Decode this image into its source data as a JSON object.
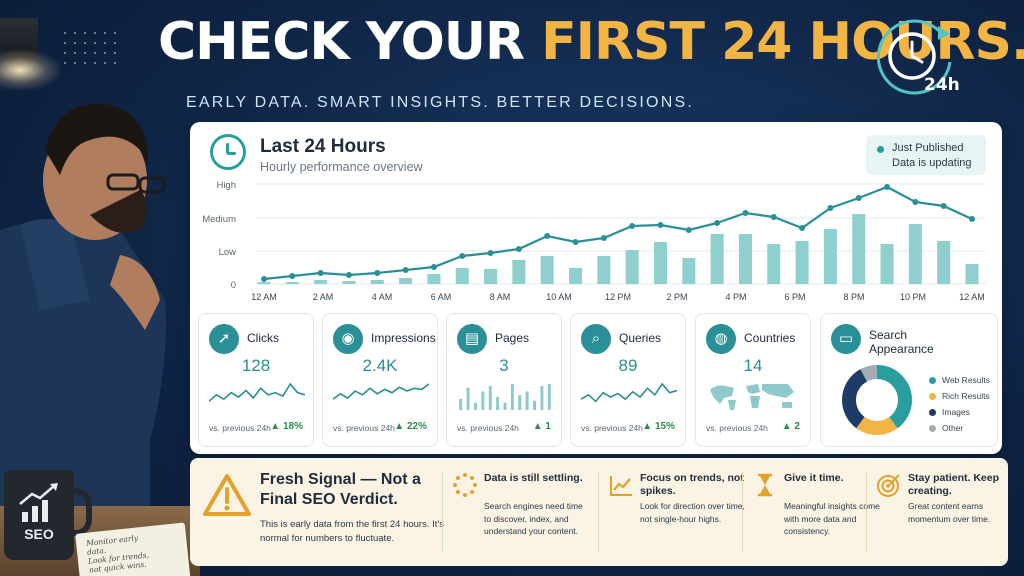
{
  "header": {
    "title_white": "CHECK YOUR ",
    "title_yellow": "FIRST 24 HOURS.",
    "subtitle": "EARLY DATA. SMART INSIGHTS. BETTER DECISIONS.",
    "badge": "24h",
    "badge_icon": "clock-icon"
  },
  "main_card": {
    "title": "Last 24 Hours",
    "subtitle": "Hourly performance overview",
    "status_title": "Just Published",
    "status_text": "Data is updating"
  },
  "chart_data": {
    "type": "bar",
    "y_tick_labels": [
      "High",
      "Medium",
      "Low",
      "0"
    ],
    "x_tick_labels": [
      "12 AM",
      "2 AM",
      "4 AM",
      "6 AM",
      "8 AM",
      "10 AM",
      "12 PM",
      "2 PM",
      "4 PM",
      "6 PM",
      "8 PM",
      "10 PM",
      "12 AM"
    ],
    "ylim": [
      0,
      100
    ],
    "grid": true,
    "series": [
      {
        "type": "bar",
        "color": "#8fd0cf",
        "values": [
          2,
          2,
          4,
          3,
          4,
          6,
          10,
          16,
          15,
          24,
          28,
          16,
          28,
          34,
          42,
          26,
          50,
          50,
          40,
          43,
          55,
          70,
          40,
          60,
          43,
          20
        ]
      },
      {
        "type": "line",
        "color": "#2a8f96",
        "values": [
          5,
          8,
          11,
          9,
          11,
          14,
          17,
          28,
          31,
          35,
          48,
          42,
          46,
          58,
          59,
          54,
          61,
          71,
          67,
          56,
          76,
          86,
          97,
          82,
          78,
          65
        ]
      }
    ]
  },
  "metrics": [
    {
      "label": "Clicks",
      "value": "128",
      "foot": "vs. previous 24h",
      "delta": "▲ 18%",
      "icon": "cursor-icon",
      "spark": "line",
      "spark_values": [
        40,
        55,
        45,
        60,
        50,
        65,
        48,
        70,
        55,
        60,
        52,
        80,
        60,
        55
      ]
    },
    {
      "label": "Impressions",
      "value": "2.4K",
      "foot": "vs. previous 24h",
      "delta": "▲ 22%",
      "icon": "eye-icon",
      "spark": "line",
      "spark_values": [
        40,
        50,
        42,
        55,
        48,
        60,
        50,
        58,
        52,
        62,
        55,
        60,
        58,
        68
      ]
    },
    {
      "label": "Pages",
      "value": "3",
      "foot": "vs. previous 24h",
      "delta": "▲ 1",
      "icon": "document-icon",
      "spark": "bar",
      "spark_values": [
        40,
        70,
        30,
        60,
        75,
        45,
        30,
        80,
        50,
        60,
        35,
        75,
        80
      ]
    },
    {
      "label": "Queries",
      "value": "89",
      "foot": "vs. previous 24h",
      "delta": "▲ 15%",
      "icon": "search-icon",
      "spark": "line",
      "spark_values": [
        45,
        55,
        40,
        60,
        50,
        58,
        45,
        62,
        50,
        70,
        55,
        80,
        60,
        65
      ]
    },
    {
      "label": "Countries",
      "value": "14",
      "foot": "vs. previous 24h",
      "delta": "▲ 2",
      "icon": "globe-icon",
      "spark": "map",
      "spark_values": []
    }
  ],
  "search_appearance": {
    "label": "Search Appearance",
    "icon": "browser-icon",
    "segments": [
      {
        "name": "Web Results",
        "value": 40,
        "color": "#2a9d9f"
      },
      {
        "name": "Rich Results",
        "value": 20,
        "color": "#f2b544"
      },
      {
        "name": "Images",
        "value": 32,
        "color": "#1e3a66"
      },
      {
        "name": "Other",
        "value": 8,
        "color": "#a3adb6"
      }
    ]
  },
  "advice": {
    "title": "Fresh Signal — Not a Final SEO Verdict.",
    "text": "This is early data from the first 24 hours. It's normal for numbers to fluctuate.",
    "icon": "warning-icon",
    "tips": [
      {
        "title": "Data is still settling.",
        "text": "Search engines need time to discover, index, and understand your content.",
        "icon": "loading-icon"
      },
      {
        "title": "Focus on trends, not spikes.",
        "text": "Look for direction over time, not single-hour highs.",
        "icon": "trend-icon"
      },
      {
        "title": "Give it time.",
        "text": "Meaningful insights come with more data and consistency.",
        "icon": "hourglass-icon"
      },
      {
        "title": "Stay patient. Keep creating.",
        "text": "Great content earns momentum over time.",
        "icon": "target-icon"
      }
    ]
  },
  "desk": {
    "mug_text": "SEO",
    "note_lines": [
      "Monitor early",
      "data.",
      "Look for trends,",
      "not quick wins."
    ]
  }
}
